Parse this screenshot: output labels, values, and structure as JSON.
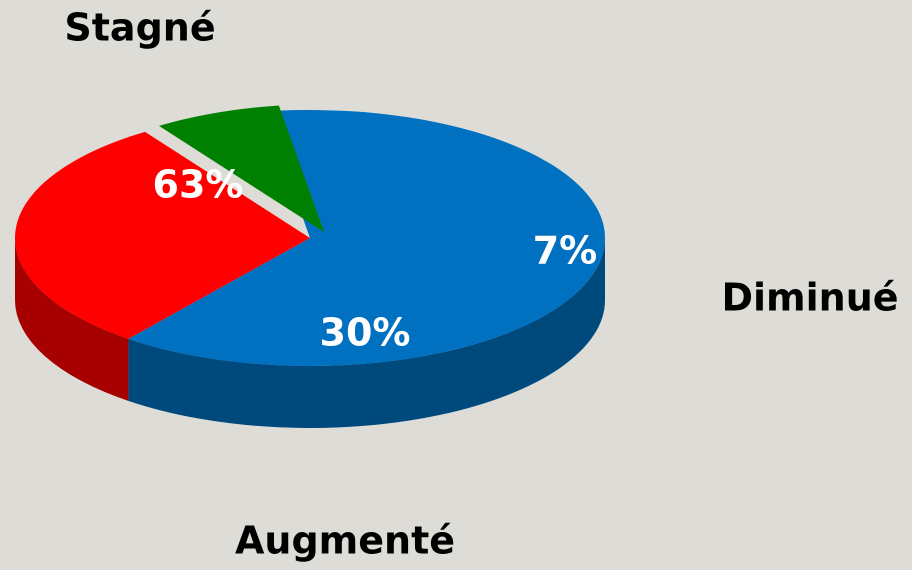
{
  "chart_data": {
    "type": "pie",
    "categories": [
      "Stagné",
      "Augmenté",
      "Diminué"
    ],
    "values": [
      63,
      30,
      7
    ],
    "value_labels": [
      "63%",
      "30%",
      "7%"
    ],
    "colors": [
      "#0070c0",
      "#ff0000",
      "#008000"
    ]
  }
}
